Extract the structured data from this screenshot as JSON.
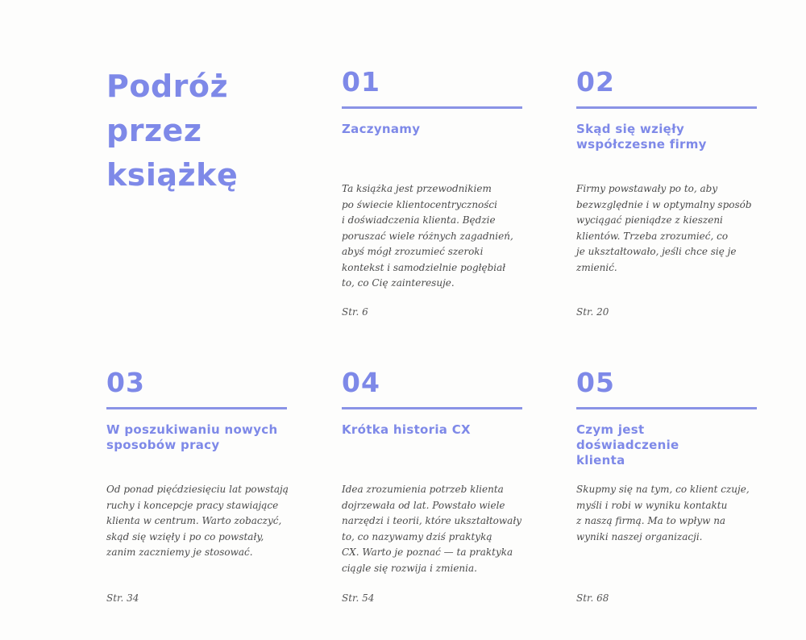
{
  "title": [
    "Podróż",
    "przez",
    "książkę"
  ],
  "color_accent": "#7e89e8",
  "sections": [
    {
      "number": "01",
      "heading": "Zaczynamy",
      "body": [
        "Ta książka jest przewodnikiem",
        "po świecie klientocentryczności",
        "i doświadczenia klienta. Będzie",
        "poruszać wiele różnych zagadnień,",
        "abyś mógł zrozumieć szeroki",
        "kontekst i samodzielnie pogłębiał",
        "to, co Cię zainteresuje."
      ],
      "page": "Str. 6"
    },
    {
      "number": "02",
      "heading": "Skąd się wzięły współczesne firmy",
      "body": [
        "Firmy powstawały po to, aby",
        "bezwzględnie i w optymalny sposób",
        "wyciągać pieniądze z kieszeni",
        "klientów. Trzeba zrozumieć, co",
        "je ukształtowało, jeśli chce się je",
        "zmienić."
      ],
      "page": "Str. 20"
    },
    {
      "number": "03",
      "heading": "W poszukiwaniu nowych sposobów pracy",
      "body": [
        "Od ponad pięćdziesięciu lat powstają",
        "ruchy i koncepcje pracy stawiające",
        "klienta w centrum. Warto zobaczyć,",
        "skąd się wzięły i po co powstały,",
        "zanim zaczniemy je stosować."
      ],
      "page": "Str. 34"
    },
    {
      "number": "04",
      "heading": "Krótka historia CX",
      "body": [
        "Idea zrozumienia potrzeb klienta",
        "dojrzewała od lat. Powstało wiele",
        "narzędzi i teorii, które ukształtowały",
        "to, co nazywamy dziś praktyką",
        "CX. Warto je poznać — ta praktyka",
        "ciągle się rozwija i zmienia."
      ],
      "page": "Str. 54"
    },
    {
      "number": "05",
      "heading": "Czym jest doświadczenie klienta",
      "body": [
        "Skupmy się na tym, co klient czuje,",
        "myśli i robi w wyniku kontaktu",
        "z naszą firmą. Ma to wpływ na",
        "wyniki naszej organizacji."
      ],
      "page": "Str. 68"
    }
  ]
}
